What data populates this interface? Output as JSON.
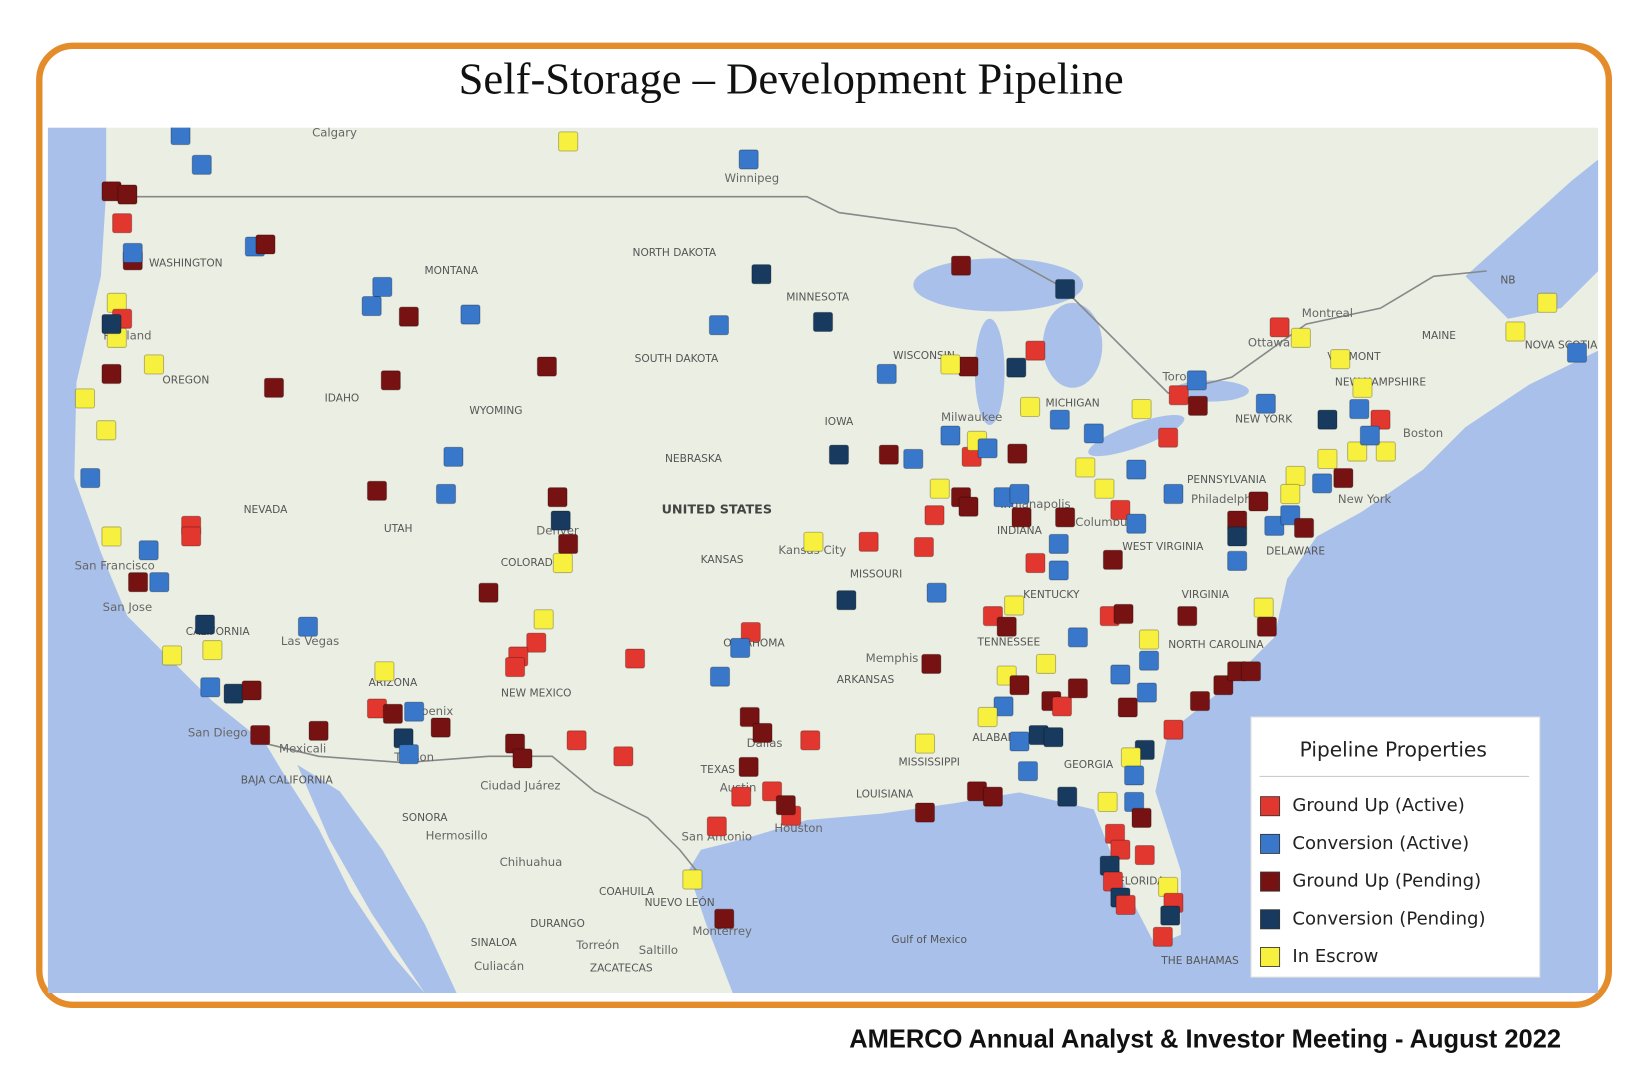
{
  "title": "Self-Storage – Development Pipeline",
  "footer": "AMERCO Annual Analyst & Investor Meeting - August 2022",
  "legend": {
    "title": "Pipeline Properties",
    "items": [
      {
        "name": "Ground Up (Active)",
        "color": "#e2372e"
      },
      {
        "name": "Conversion (Active)",
        "color": "#3877c9"
      },
      {
        "name": "Ground Up (Pending)",
        "color": "#761212"
      },
      {
        "name": "Conversion (Pending)",
        "color": "#173a5e"
      },
      {
        "name": "In Escrow",
        "color": "#f7f03e"
      }
    ]
  },
  "map_labels": [
    "Calgary",
    "Winnipeg",
    "WASHINGTON",
    "MONTANA",
    "NORTH DAKOTA",
    "MINNESOTA",
    "SOUTH DAKOTA",
    "OREGON",
    "IDAHO",
    "WYOMING",
    "WISCONSIN",
    "MICHIGAN",
    "IOWA",
    "NEBRASKA",
    "NEVADA",
    "UTAH",
    "UNITED STATES",
    "COLORADO",
    "KANSAS",
    "MISSOURI",
    "INDIANA",
    "Columbus",
    "KENTUCKY",
    "WEST VIRGINIA",
    "VIRGINIA",
    "PENNSYLVANIA",
    "NEW YORK",
    "TENNESSEE",
    "NORTH CAROLINA",
    "OKLAHOMA",
    "ARKANSAS",
    "CALIFORNIA",
    "ARIZONA",
    "NEW MEXICO",
    "TEXAS",
    "LOUISIANA",
    "MISSISSIPPI",
    "ALABAMA",
    "GEORGIA",
    "FLORIDA",
    "Las Vegas",
    "San Diego",
    "Mexicali",
    "Phoenix",
    "Tucson",
    "Ciudad Juárez",
    "Dallas",
    "Austin",
    "Houston",
    "San Antonio",
    "Hermosillo",
    "Chihuahua",
    "Monterrey",
    "Saltillo",
    "Torreón",
    "Culiacán",
    "Denver",
    "Kansas City",
    "Memphis",
    "Indianapolis",
    "Milwaukee",
    "Toronto",
    "Ottawa",
    "Montreal",
    "Boston",
    "New York",
    "Philadelphia",
    "MAINE",
    "NEW HAMPSHIRE",
    "VERMONT",
    "DELAWARE",
    "NOVA SCOTIA",
    "NB",
    "Gulf of Mexico",
    "San Francisco",
    "San Jose",
    "Portland",
    "SONORA",
    "COAHUILA",
    "NUEVO LEÓN",
    "DURANGO",
    "SINALOA",
    "ZACATECAS",
    "BAJA CALIFORNIA",
    "THE BAHAMAS"
  ]
}
